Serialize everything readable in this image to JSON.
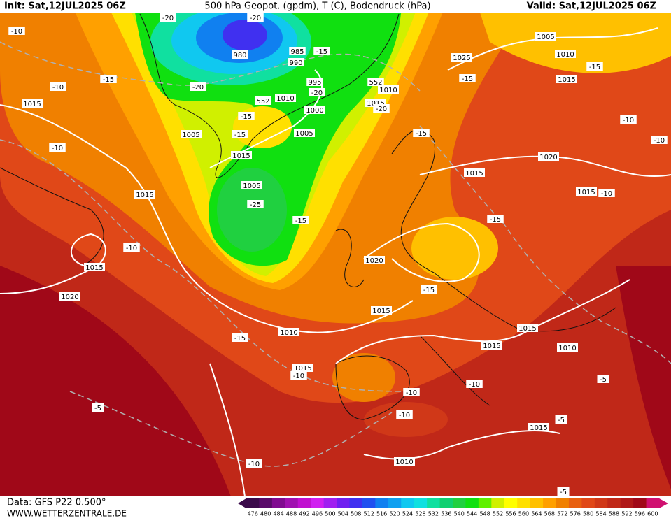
{
  "header": {
    "init": "Init: Sat,12JUL2025 06Z",
    "title": "500 hPa Geopot. (gpdm), T (C), Bodendruck (hPa)",
    "valid": "Valid: Sat,12JUL2025 06Z"
  },
  "map_labels": [
    "-10",
    "-20",
    "-20",
    "980",
    "985",
    "-15",
    "990",
    "1005",
    "1010",
    "1025",
    "-15",
    "-15",
    "-10",
    "-20",
    "995",
    "-20",
    "552",
    "1010",
    "-15",
    "1015",
    "1015",
    "552",
    "1010",
    "1015",
    "-20",
    "1000",
    "-15",
    "-15",
    "1005",
    "1005",
    "-15",
    "-10",
    "-10",
    "-10",
    "1015",
    "1020",
    "1015",
    "1005",
    "1015",
    "-10",
    "1015",
    "-25",
    "-15",
    "-15",
    "-10",
    "1020",
    "1015",
    "-15",
    "1020",
    "1015",
    "1015",
    "1010",
    "-15",
    "1015",
    "1010",
    "1015",
    "-10",
    "-5",
    "-10",
    "-10",
    "-5",
    "-10",
    "-5",
    "1015",
    "1010",
    "-10",
    "-5"
  ],
  "footer": {
    "source": "Data: GFS P22 0.500°",
    "site": "WWW.WETTERZENTRALE.DE"
  },
  "colorbar": {
    "values": [
      476,
      480,
      484,
      488,
      492,
      496,
      500,
      504,
      508,
      512,
      516,
      520,
      524,
      528,
      532,
      536,
      540,
      544,
      548,
      552,
      556,
      560,
      564,
      568,
      572,
      576,
      580,
      584,
      588,
      592,
      596,
      600
    ],
    "colors": [
      "#3a0a4a",
      "#5a0a6a",
      "#800a90",
      "#a010b0",
      "#c010d0",
      "#d020f0",
      "#a020f0",
      "#7020f0",
      "#4030f0",
      "#2050f0",
      "#1080f0",
      "#10a0f0",
      "#10c8f0",
      "#10e0e0",
      "#10e0a0",
      "#10d070",
      "#20d040",
      "#10e010",
      "#60f000",
      "#d0f000",
      "#ffff00",
      "#ffe000",
      "#ffc000",
      "#ffa000",
      "#f08000",
      "#e86010",
      "#e04818",
      "#d03818",
      "#c02818",
      "#b01818",
      "#a00818",
      "#d01070"
    ]
  }
}
